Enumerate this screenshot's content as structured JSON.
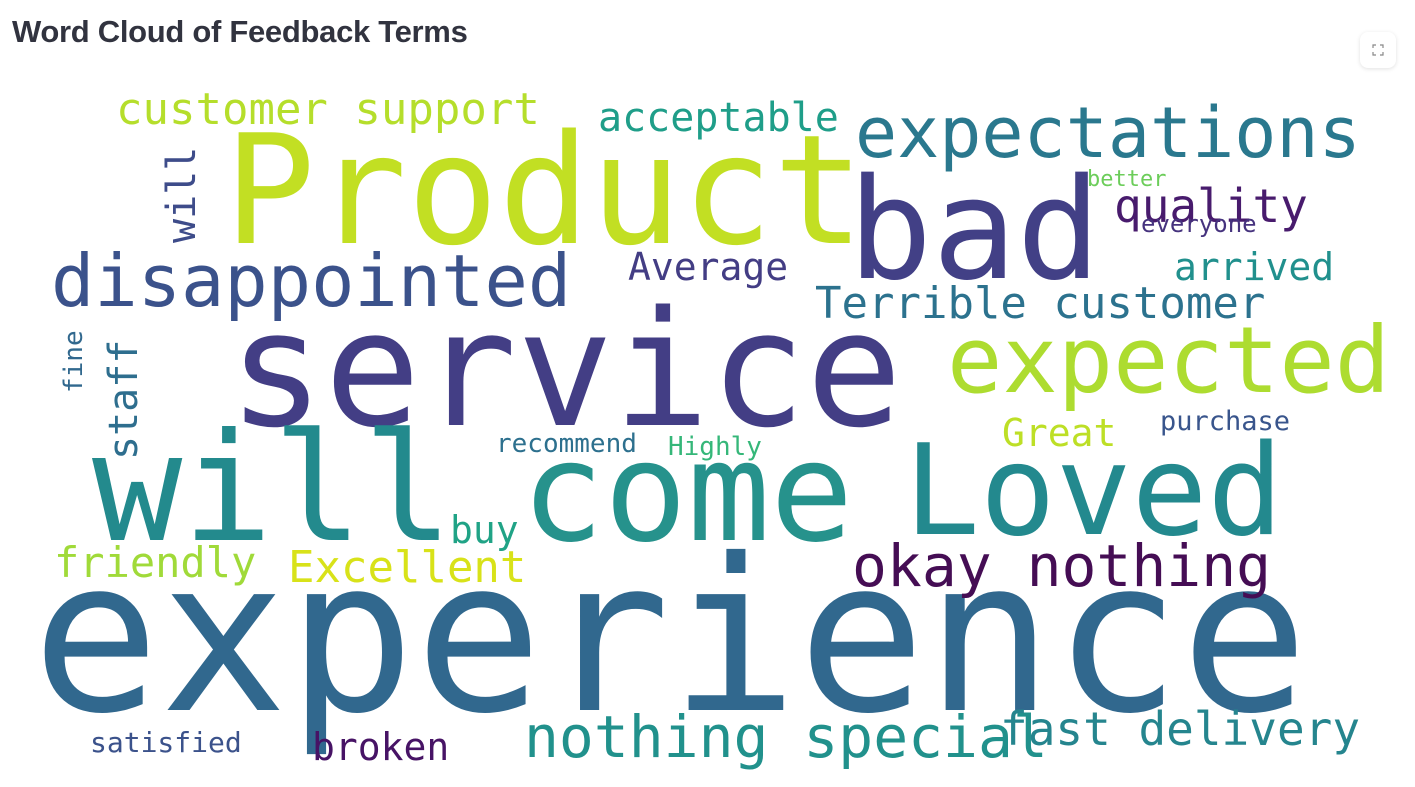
{
  "page": {
    "title": "Word Cloud of Feedback Terms"
  },
  "toolbar": {
    "fullscreen_icon": "expand-icon"
  },
  "cloud": {
    "colormap": "viridis",
    "words": [
      {
        "text": "experience",
        "color": "#31688e"
      },
      {
        "text": "service",
        "color": "#433e85"
      },
      {
        "text": "Product",
        "color": "#c2df23"
      },
      {
        "text": "will",
        "color": "#238a8d"
      },
      {
        "text": "come",
        "color": "#26928c"
      },
      {
        "text": "Loved",
        "color": "#23898e"
      },
      {
        "text": "bad",
        "color": "#424086"
      },
      {
        "text": "expected",
        "color": "#addc30"
      },
      {
        "text": "expectations",
        "color": "#2a788e"
      },
      {
        "text": "disappointed",
        "color": "#3b528b"
      },
      {
        "text": "okay nothing",
        "color": "#450d54"
      },
      {
        "text": "nothing special",
        "color": "#21918c"
      },
      {
        "text": "fast delivery",
        "color": "#25858e"
      },
      {
        "text": "Terrible customer",
        "color": "#2c728e"
      },
      {
        "text": "customer support",
        "color": "#b5de2b"
      },
      {
        "text": "Excellent",
        "color": "#d8e219"
      },
      {
        "text": "acceptable",
        "color": "#1f9e89"
      },
      {
        "text": "quality",
        "color": "#481b6d"
      },
      {
        "text": "arrived",
        "color": "#21908d"
      },
      {
        "text": "Average",
        "color": "#433d84"
      },
      {
        "text": "friendly",
        "color": "#a0da39"
      },
      {
        "text": "broken",
        "color": "#471365"
      },
      {
        "text": "buy",
        "color": "#20a386"
      },
      {
        "text": "Great",
        "color": "#bddf26"
      },
      {
        "text": "will",
        "color": "#3e4c8a"
      },
      {
        "text": "staff",
        "color": "#2e6e8e"
      },
      {
        "text": "satisfied",
        "color": "#3b528b"
      },
      {
        "text": "recommend",
        "color": "#2d708e"
      },
      {
        "text": "Highly",
        "color": "#35b779"
      },
      {
        "text": "purchase",
        "color": "#39558c"
      },
      {
        "text": "better",
        "color": "#6ccd5a"
      },
      {
        "text": "everyone",
        "color": "#46337e"
      },
      {
        "text": "fine",
        "color": "#31688e"
      }
    ]
  }
}
